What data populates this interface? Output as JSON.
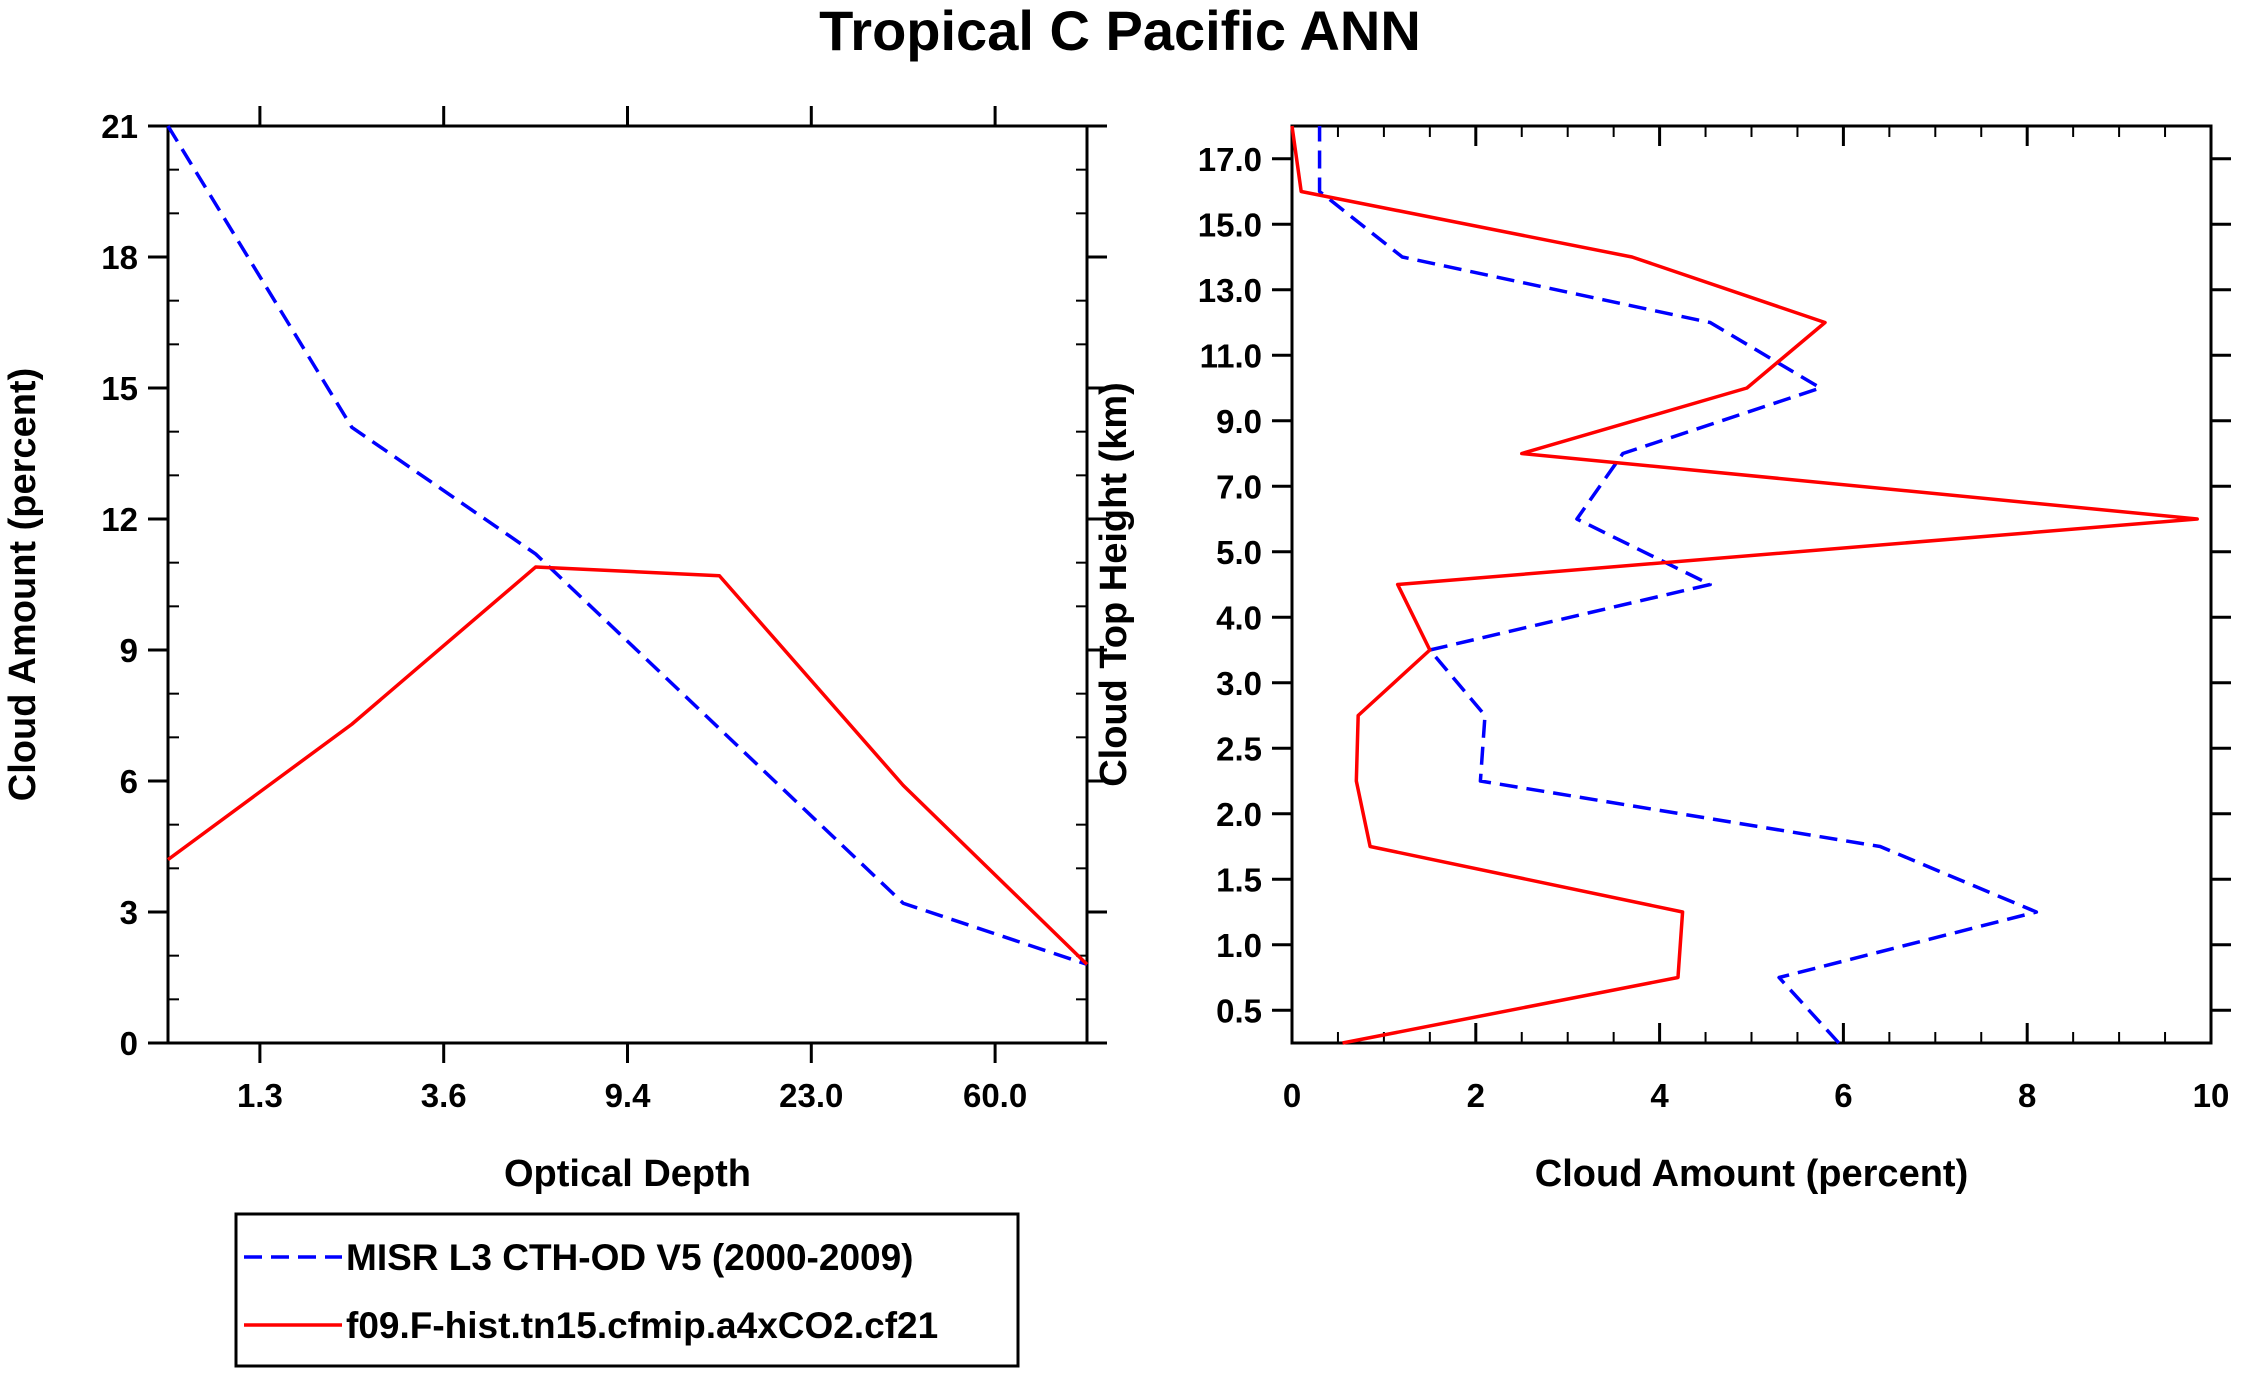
{
  "title": "Tropical C Pacific ANN",
  "colors": {
    "obs": "#0000ff",
    "model": "#ff0000",
    "axis": "#000000"
  },
  "legend": {
    "entries": [
      {
        "label": "MISR L3 CTH-OD V5 (2000-2009)",
        "style": "dashed",
        "color": "#0000ff"
      },
      {
        "label": "f09.F-hist.tn15.cfmip.a4xCO2.cf21",
        "style": "solid",
        "color": "#ff0000"
      }
    ]
  },
  "chart_data": [
    {
      "type": "line",
      "xlabel": "Optical Depth",
      "ylabel": "Cloud Amount (percent)",
      "xlim": [
        0,
        5
      ],
      "ylim": [
        0,
        21
      ],
      "x_tick_positions": [
        0.5,
        1.5,
        2.5,
        3.5,
        4.5
      ],
      "x_tick_labels": [
        "1.3",
        "3.6",
        "9.4",
        "23.0",
        "60.0"
      ],
      "y_ticks": [
        0,
        3,
        6,
        9,
        12,
        15,
        18,
        21
      ],
      "y_tick_labels": [
        "0",
        "3",
        "6",
        "9",
        "12",
        "15",
        "18",
        "21"
      ],
      "series": [
        {
          "name": "MISR L3 CTH-OD V5 (2000-2009)",
          "style": "dashed",
          "x": [
            0,
            1,
            2,
            3,
            4,
            5
          ],
          "y": [
            21.0,
            14.1,
            11.2,
            7.2,
            3.2,
            1.8
          ]
        },
        {
          "name": "f09.F-hist.tn15.cfmip.a4xCO2.cf21",
          "style": "solid",
          "x": [
            0,
            1,
            2,
            3,
            4,
            5
          ],
          "y": [
            4.2,
            7.3,
            10.9,
            10.7,
            5.9,
            1.8
          ]
        }
      ]
    },
    {
      "type": "line",
      "xlabel": "Cloud Amount (percent)",
      "ylabel": "Cloud Top Height (km)",
      "xlim": [
        0,
        10
      ],
      "ylim": [
        0,
        14
      ],
      "x_ticks": [
        0,
        2,
        4,
        6,
        8,
        10
      ],
      "x_tick_labels": [
        "0",
        "2",
        "4",
        "6",
        "8",
        "10"
      ],
      "y_tick_positions": [
        0.5,
        1.5,
        2.5,
        3.5,
        4.5,
        5.5,
        6.5,
        7.5,
        8.5,
        9.5,
        10.5,
        11.5,
        12.5,
        13.5
      ],
      "y_tick_labels": [
        "0.5",
        "1.0",
        "1.5",
        "2.0",
        "2.5",
        "3.0",
        "4.0",
        "5.0",
        "7.0",
        "9.0",
        "11.0",
        "13.0",
        "15.0",
        "17.0"
      ],
      "series": [
        {
          "name": "MISR L3 CTH-OD V5 (2000-2009)",
          "style": "dashed",
          "y": [
            0,
            1,
            2,
            3,
            4,
            5,
            6,
            7,
            8,
            9,
            10,
            11,
            12,
            13,
            14
          ],
          "x": [
            5.95,
            5.3,
            8.1,
            6.4,
            2.05,
            2.1,
            1.5,
            4.55,
            3.1,
            3.6,
            5.75,
            4.55,
            1.2,
            0.3,
            0.3
          ]
        },
        {
          "name": "f09.F-hist.tn15.cfmip.a4xCO2.cf21",
          "style": "solid",
          "y": [
            0,
            1,
            2,
            3,
            4,
            5,
            6,
            7,
            8,
            9,
            10,
            11,
            12,
            13,
            14
          ],
          "x": [
            0.55,
            4.2,
            4.25,
            0.85,
            0.7,
            0.72,
            1.5,
            1.15,
            9.85,
            2.5,
            4.95,
            5.8,
            3.7,
            0.1,
            0.0
          ]
        }
      ]
    }
  ]
}
